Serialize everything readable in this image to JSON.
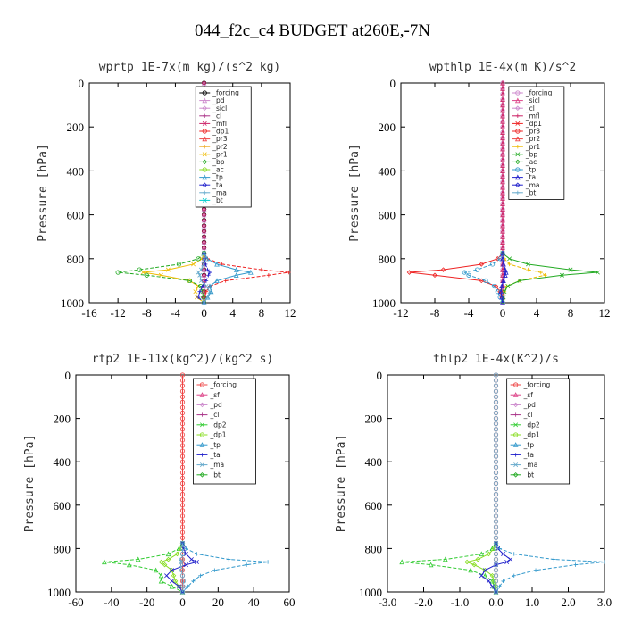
{
  "figure_title": "044_f2c_c4  BUDGET at260E,-7N",
  "chart_data": [
    {
      "type": "line",
      "title": "wprtp  1E-7x(m kg)/(s^2 kg)",
      "ylabel": "Pressure [hPa]",
      "xlim": [
        -16,
        12
      ],
      "ylim": [
        0,
        1000
      ],
      "xticks": [
        "-16",
        "-12",
        "-8",
        "-4",
        "0",
        "4",
        "8",
        "12"
      ],
      "yticks": [
        "0",
        "200",
        "400",
        "600",
        "800",
        "1000"
      ],
      "legend": [
        "_forcing",
        "_pd",
        "_sicl",
        "_cl",
        "_mfl",
        "_dp1",
        "_pr3",
        "_pr2",
        "_pr1",
        "_bp",
        "_ac",
        "_tp",
        "_ta",
        "_ma",
        "_bt"
      ],
      "pressure": [
        775,
        800,
        825,
        850,
        862,
        875,
        900,
        925,
        950,
        975,
        1000
      ],
      "series": [
        {
          "name": "_forcing",
          "color": "#000000",
          "values": [
            0,
            0,
            0,
            0,
            0,
            0,
            0,
            0,
            0,
            0,
            0
          ]
        },
        {
          "name": "_pd",
          "color": "#cc88cc",
          "values": [
            0,
            0,
            0,
            0,
            0,
            0,
            0,
            0,
            0,
            0,
            0
          ]
        },
        {
          "name": "_mfl",
          "color": "#cc2266",
          "values": [
            0,
            0,
            0,
            0,
            0,
            0,
            0,
            0,
            0,
            0,
            0
          ]
        },
        {
          "name": "_dp1",
          "color": "#ee2222",
          "values": [
            0,
            0.5,
            2.5,
            8,
            11.8,
            9,
            3,
            0.8,
            0.3,
            0.1,
            0
          ]
        },
        {
          "name": "_pr1",
          "color": "#eebb00",
          "values": [
            0,
            -0.3,
            -1.5,
            -5,
            -8.5,
            -6,
            -2,
            -0.8,
            -1.2,
            -1,
            0
          ]
        },
        {
          "name": "_bp",
          "color": "#22aa22",
          "values": [
            0,
            -0.8,
            -3.5,
            -9,
            -12,
            -8,
            -2,
            -0.5,
            -0.2,
            -0.1,
            0
          ]
        },
        {
          "name": "_tp",
          "color": "#3399cc",
          "values": [
            0,
            0.4,
            1.8,
            4.5,
            6.5,
            4.5,
            1.8,
            0.8,
            1,
            0.5,
            0
          ]
        },
        {
          "name": "_ta",
          "color": "#2222cc",
          "values": [
            0,
            0,
            0.2,
            0.5,
            0.8,
            0.6,
            0.3,
            -0.2,
            -0.6,
            -0.8,
            0
          ]
        },
        {
          "name": "_ma",
          "color": "#66aacc",
          "values": [
            0,
            0,
            -0.1,
            -0.4,
            -0.8,
            -0.6,
            -0.4,
            0.3,
            0.8,
            0.5,
            0
          ]
        }
      ]
    },
    {
      "type": "line",
      "title": "wpthlp  1E-4x(m K)/s^2",
      "ylabel": "Pressure [hPa]",
      "xlim": [
        -12,
        12
      ],
      "ylim": [
        0,
        1000
      ],
      "xticks": [
        "-12",
        "-8",
        "-4",
        "0",
        "4",
        "8",
        "12"
      ],
      "yticks": [
        "0",
        "200",
        "400",
        "600",
        "800",
        "1000"
      ],
      "legend": [
        "_forcing",
        "_sicl",
        "_cl",
        "_mfl",
        "_dp1",
        "_pr3",
        "_pr2",
        "_pr1",
        "_bp",
        "_ac",
        "_tp",
        "_ta",
        "_ma",
        "_bt"
      ],
      "pressure": [
        775,
        800,
        825,
        850,
        862,
        875,
        900,
        925,
        950,
        975,
        1000
      ],
      "series": [
        {
          "name": "_forcing",
          "color": "#cc88cc",
          "values": [
            0,
            0,
            0,
            0,
            0,
            0,
            0,
            0,
            0,
            0,
            0
          ]
        },
        {
          "name": "_mfl",
          "color": "#cc2266",
          "values": [
            0,
            0,
            0,
            0,
            0,
            0,
            0,
            0,
            0,
            0,
            0
          ]
        },
        {
          "name": "_dp1",
          "color": "#ee2222",
          "values": [
            0,
            -0.6,
            -2.5,
            -7,
            -11,
            -8,
            -2.5,
            -0.8,
            -0.3,
            -0.1,
            0
          ]
        },
        {
          "name": "_pr1",
          "color": "#eebb00",
          "values": [
            0,
            0.2,
            0.8,
            3,
            4.5,
            5,
            2,
            0.5,
            0.2,
            0,
            0
          ]
        },
        {
          "name": "_bp",
          "color": "#22aa22",
          "values": [
            0,
            0.8,
            3,
            8,
            11.2,
            7,
            2,
            0.6,
            0.2,
            0.1,
            0
          ]
        },
        {
          "name": "_tp",
          "color": "#3399cc",
          "values": [
            0,
            -0.3,
            -1.2,
            -3,
            -4.5,
            -4,
            -2,
            -1,
            -0.6,
            -0.3,
            0
          ]
        },
        {
          "name": "_ta",
          "color": "#2222cc",
          "values": [
            0,
            0,
            0.1,
            0.3,
            0.4,
            0.3,
            0.1,
            -0.1,
            -0.2,
            -0.1,
            0
          ]
        }
      ]
    },
    {
      "type": "line",
      "title": "rtp2  1E-11x(kg^2)/(kg^2 s)",
      "ylabel": "Pressure [hPa]",
      "xlim": [
        -60,
        60
      ],
      "ylim": [
        0,
        1000
      ],
      "xticks": [
        "-60",
        "-40",
        "-20",
        "0",
        "20",
        "40",
        "60"
      ],
      "yticks": [
        "0",
        "200",
        "400",
        "600",
        "800",
        "1000"
      ],
      "legend": [
        "_forcing",
        "_sf",
        "_pd",
        "_cl",
        "_dp2",
        "_dp1",
        "_tp",
        "_ta",
        "_ma",
        "_bt"
      ],
      "pressure": [
        775,
        800,
        825,
        850,
        862,
        875,
        900,
        925,
        950,
        975,
        1000
      ],
      "series": [
        {
          "name": "_forcing",
          "color": "#ee4444",
          "values": [
            0,
            0,
            0,
            0,
            0,
            0,
            0,
            0,
            0,
            0,
            0
          ]
        },
        {
          "name": "_dp2",
          "color": "#33cc33",
          "values": [
            0,
            -2,
            -8,
            -25,
            -44,
            -30,
            -15,
            -12,
            -12,
            -6,
            0
          ]
        },
        {
          "name": "_dp1",
          "color": "#88dd22",
          "values": [
            0,
            -1,
            -3,
            -8,
            -12,
            -10,
            -6,
            -5,
            -4,
            -2,
            0
          ]
        },
        {
          "name": "_tp",
          "color": "#3399cc",
          "values": [
            0,
            2,
            8,
            26,
            48,
            36,
            18,
            10,
            6,
            3,
            0
          ]
        },
        {
          "name": "_ta",
          "color": "#2222cc",
          "values": [
            0,
            0.5,
            2,
            5,
            8,
            2,
            -6,
            -9,
            -6,
            -2,
            0
          ]
        },
        {
          "name": "_ma",
          "color": "#66aacc",
          "values": [
            0,
            0,
            0,
            -0.5,
            -1,
            -1,
            -0.5,
            0,
            0.5,
            0.3,
            0
          ]
        }
      ]
    },
    {
      "type": "line",
      "title": "thlp2  1E-4x(K^2)/s",
      "ylabel": "Pressure [hPa]",
      "xlim": [
        -3,
        3
      ],
      "ylim": [
        0,
        1000
      ],
      "xticks": [
        "-3.0",
        "-2.0",
        "-1.0",
        "0.0",
        "1.0",
        "2.0",
        "3.0"
      ],
      "yticks": [
        "0",
        "200",
        "400",
        "600",
        "800",
        "1000"
      ],
      "legend": [
        "_forcing",
        "_sf",
        "_pd",
        "_cl",
        "_dp2",
        "_dp1",
        "_tp",
        "_ta",
        "_ma",
        "_bt"
      ],
      "pressure": [
        775,
        800,
        825,
        850,
        862,
        875,
        900,
        925,
        950,
        975,
        1000
      ],
      "series": [
        {
          "name": "_forcing",
          "color": "#ee4444",
          "values": [
            0,
            0,
            0,
            0,
            0,
            0,
            0,
            0,
            0,
            0,
            0
          ]
        },
        {
          "name": "_dp2",
          "color": "#33cc33",
          "values": [
            0,
            -0.1,
            -0.4,
            -1.4,
            -2.6,
            -1.8,
            -0.7,
            -0.3,
            -0.1,
            -0.05,
            0
          ]
        },
        {
          "name": "_dp1",
          "color": "#88dd22",
          "values": [
            0,
            -0.05,
            -0.2,
            -0.5,
            -0.8,
            -0.6,
            -0.3,
            -0.1,
            -0.05,
            0,
            0
          ]
        },
        {
          "name": "_tp",
          "color": "#3399cc",
          "values": [
            0,
            0.1,
            0.5,
            1.6,
            3,
            2.2,
            1.1,
            0.5,
            0.2,
            0.1,
            0
          ]
        },
        {
          "name": "_ta",
          "color": "#2222cc",
          "values": [
            0,
            0.05,
            0.2,
            0.4,
            0.3,
            0,
            -0.3,
            -0.4,
            -0.2,
            -0.1,
            0
          ]
        },
        {
          "name": "_ma",
          "color": "#66aacc",
          "values": [
            0,
            0,
            0,
            0,
            0,
            0,
            0,
            0,
            0,
            0,
            0
          ]
        }
      ]
    }
  ]
}
